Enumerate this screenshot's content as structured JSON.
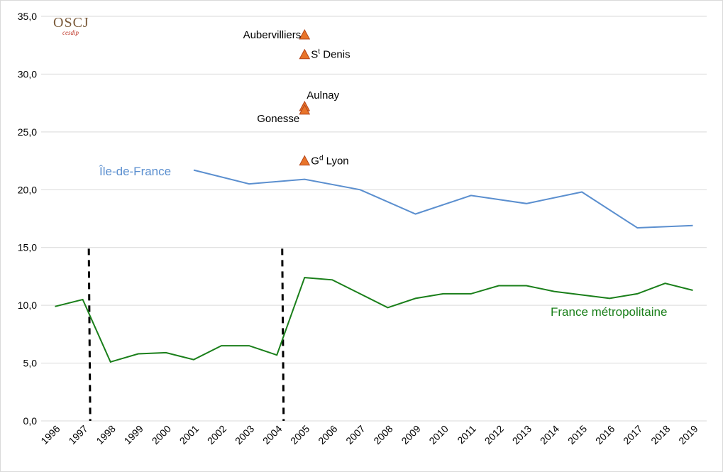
{
  "logo": {
    "text": "OSCJ",
    "subtext": "cesdip"
  },
  "colors": {
    "ile_de_france": "#5b8fcf",
    "france": "#1a7f1a",
    "marker_fill": "#e8742a",
    "marker_stroke": "#b5441a",
    "grid": "#d9d9d9",
    "break_line": "#000000"
  },
  "chart_data": {
    "type": "line",
    "x": [
      "1996",
      "1997",
      "1998",
      "1999",
      "2000",
      "2001",
      "2002",
      "2003",
      "2004",
      "2005",
      "2006",
      "2007",
      "2008",
      "2009",
      "2010",
      "2011",
      "2012",
      "2013",
      "2014",
      "2015",
      "2016",
      "2017",
      "2018",
      "2019"
    ],
    "ylim": [
      0,
      35
    ],
    "yticks": [
      "0,0",
      "5,0",
      "10,0",
      "15,0",
      "20,0",
      "25,0",
      "30,0",
      "35,0"
    ],
    "grid": true,
    "series": [
      {
        "key": "idf",
        "name": "Île-de-France",
        "points": [
          {
            "x": "2001",
            "y": 21.7
          },
          {
            "x": "2003",
            "y": 20.5
          },
          {
            "x": "2005",
            "y": 20.9
          },
          {
            "x": "2007",
            "y": 20.0
          },
          {
            "x": "2009",
            "y": 17.9
          },
          {
            "x": "2011",
            "y": 19.5
          },
          {
            "x": "2013",
            "y": 18.8
          },
          {
            "x": "2015",
            "y": 19.8
          },
          {
            "x": "2017",
            "y": 16.7
          },
          {
            "x": "2018",
            "y": 16.8
          },
          {
            "x": "2019",
            "y": 16.9
          }
        ]
      },
      {
        "key": "france",
        "name": "France métropolitaine",
        "points": [
          {
            "x": "1996",
            "y": 9.9
          },
          {
            "x": "1997",
            "y": 10.5
          },
          {
            "x": "1998",
            "y": 5.1
          },
          {
            "x": "1999",
            "y": 5.8
          },
          {
            "x": "2000",
            "y": 5.9
          },
          {
            "x": "2001",
            "y": 5.3
          },
          {
            "x": "2002",
            "y": 6.5
          },
          {
            "x": "2003",
            "y": 6.5
          },
          {
            "x": "2004",
            "y": 5.7
          },
          {
            "x": "2005",
            "y": 12.4
          },
          {
            "x": "2006",
            "y": 12.2
          },
          {
            "x": "2007",
            "y": 11.0
          },
          {
            "x": "2008",
            "y": 9.8
          },
          {
            "x": "2009",
            "y": 10.6
          },
          {
            "x": "2010",
            "y": 11.0
          },
          {
            "x": "2011",
            "y": 11.0
          },
          {
            "x": "2012",
            "y": 11.7
          },
          {
            "x": "2013",
            "y": 11.7
          },
          {
            "x": "2014",
            "y": 11.2
          },
          {
            "x": "2015",
            "y": 10.9
          },
          {
            "x": "2016",
            "y": 10.6
          },
          {
            "x": "2017",
            "y": 11.0
          },
          {
            "x": "2018",
            "y": 11.9
          },
          {
            "x": "2019",
            "y": 11.3
          }
        ]
      }
    ],
    "markers": [
      {
        "label": "Aubervilliers",
        "sup": "",
        "rest": "",
        "x": "2005",
        "y": 33.4,
        "side": "left"
      },
      {
        "label": "S",
        "sup": "t",
        "rest": " Denis",
        "x": "2005",
        "y": 31.7,
        "side": "right"
      },
      {
        "label": "Aulnay",
        "sup": "",
        "rest": "",
        "x": "2005",
        "y": 27.2,
        "side": "right-above"
      },
      {
        "label": "Gonesse",
        "sup": "",
        "rest": "",
        "x": "2005",
        "y": 26.9,
        "side": "left-below"
      },
      {
        "label": "G",
        "sup": "d",
        "rest": " Lyon",
        "x": "2005",
        "y": 22.5,
        "side": "right"
      }
    ],
    "break_lines": [
      {
        "between": [
          "1997",
          "1998"
        ]
      },
      {
        "between": [
          "2004",
          "2005"
        ]
      }
    ]
  }
}
